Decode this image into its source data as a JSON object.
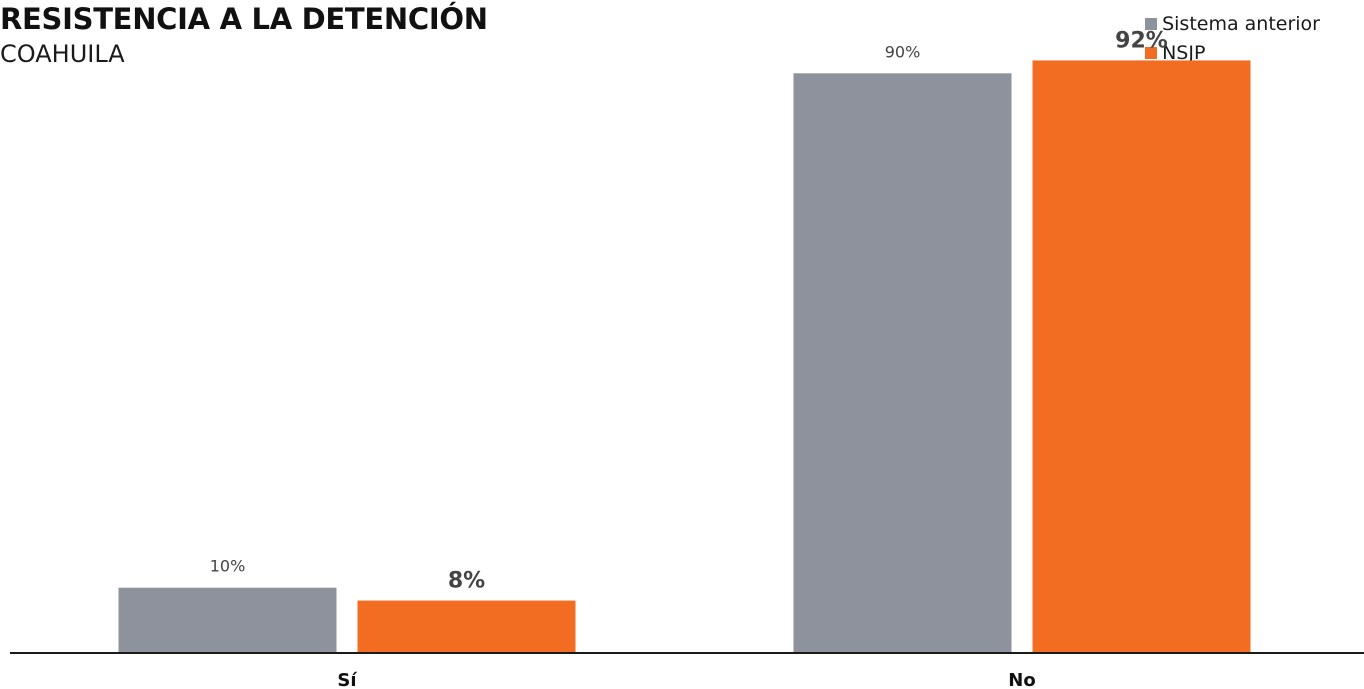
{
  "chart_data": {
    "type": "bar",
    "title": "RESISTENCIA A LA DETENCIÓN",
    "subtitle": "COAHUILA",
    "categories": [
      "Sí",
      "No"
    ],
    "series": [
      {
        "name": "Sistema anterior",
        "color": "#8e929d",
        "values": [
          10,
          90
        ],
        "labels": [
          "10%",
          "90%"
        ],
        "label_style": "regular"
      },
      {
        "name": "NSJP",
        "color": "#f26c22",
        "values": [
          8,
          92
        ],
        "labels": [
          "8%",
          "92%"
        ],
        "label_style": "bold"
      }
    ],
    "ylim": [
      0,
      100
    ],
    "grid": false,
    "legend_position": "top-right",
    "axis_color": "#1a1a1a"
  }
}
